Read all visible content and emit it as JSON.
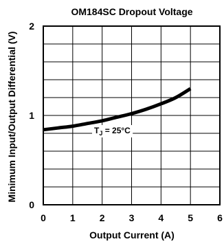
{
  "chart_data": {
    "type": "line",
    "title": "OM184SC Dropout Voltage",
    "xlabel": "Output Current (A)",
    "ylabel": "Minimum Input/Output Differential (V)",
    "xlim": [
      0,
      6
    ],
    "ylim": [
      0,
      2
    ],
    "x_ticks": [
      "0",
      "1",
      "2",
      "3",
      "4",
      "5",
      "6"
    ],
    "y_ticks": [
      "0",
      "1",
      "2"
    ],
    "x_tick_values": [
      0,
      1,
      2,
      3,
      4,
      5,
      6
    ],
    "y_tick_values": [
      0,
      1,
      2
    ],
    "grid": true,
    "x_minor_divisions": 6,
    "y_minor_divisions": 10,
    "series": [
      {
        "x": [
          0,
          0.5,
          1,
          1.5,
          2,
          2.5,
          3,
          3.5,
          4,
          4.5,
          5
        ],
        "y": [
          0.84,
          0.86,
          0.88,
          0.91,
          0.94,
          0.98,
          1.02,
          1.07,
          1.13,
          1.2,
          1.3
        ],
        "color": "#000000"
      }
    ],
    "annotations": [
      {
        "label": "T",
        "subscript": "J",
        "suffix": " = 25°C"
      }
    ]
  }
}
